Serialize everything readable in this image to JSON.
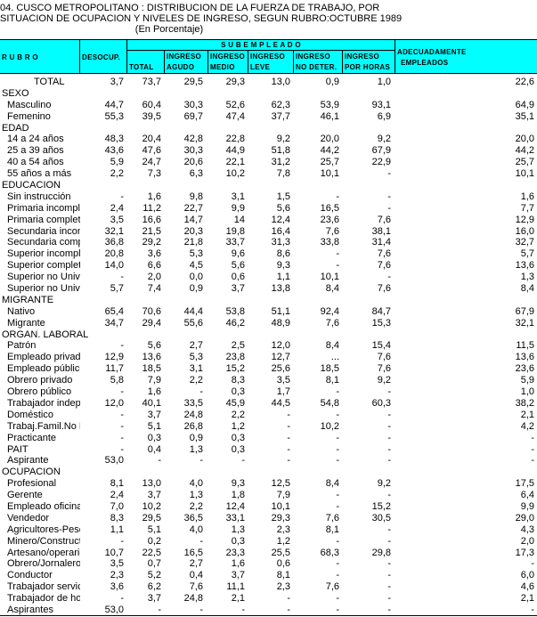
{
  "title": {
    "line1": "04.  CUSCO  METROPOLITANO  :  DISTRIBUCION DE LA FUERZA DE TRABAJO,  POR",
    "line2": "SITUACION DE OCUPACION Y NIVELES DE INGRESO, SEGUN RUBRO:OCTUBRE 1989",
    "line3": "(En Porcentaje)"
  },
  "header": {
    "rubro": "R U B R O",
    "desocup": "DESOCUP.",
    "sub_empleado": "S U B   E M P L E A D O",
    "total": "TOTAL",
    "agudo": [
      "INGRESO",
      "AGUDO"
    ],
    "medio": [
      "INGRESO",
      "MEDIO"
    ],
    "leve": [
      "INGRESO",
      "LEVE"
    ],
    "nodeter": [
      "INGRESO",
      "NO DETER."
    ],
    "porhoras": [
      "INGRESO",
      "POR HORAS"
    ],
    "adecuad": [
      "ADECUADAMENTE",
      "EMPLEADOS"
    ],
    "bg_color": "#00ffff"
  },
  "rows": [
    {
      "type": "total",
      "label": "TOTAL",
      "v": [
        "3,7",
        "73,7",
        "29,5",
        "29,3",
        "13,0",
        "0,9",
        "1,0",
        "22,6"
      ]
    },
    {
      "type": "section",
      "label": "SEXO"
    },
    {
      "label": "Masculino",
      "v": [
        "44,7",
        "60,4",
        "30,3",
        "52,6",
        "62,3",
        "53,9",
        "93,1",
        "64,9"
      ]
    },
    {
      "label": "Femenino",
      "v": [
        "55,3",
        "39,5",
        "69,7",
        "47,4",
        "37,7",
        "46,1",
        "6,9",
        "35,1"
      ]
    },
    {
      "type": "section",
      "label": "EDAD"
    },
    {
      "label": "14 a 24 años",
      "v": [
        "48,3",
        "20,4",
        "42,8",
        "22,8",
        "9,2",
        "20,0",
        "9,2",
        "20,0"
      ]
    },
    {
      "label": "25 a 39 años",
      "v": [
        "43,6",
        "47,6",
        "30,3",
        "44,9",
        "51,8",
        "44,2",
        "67,9",
        "44,2"
      ]
    },
    {
      "label": "40 a 54 años",
      "v": [
        "5,9",
        "24,7",
        "20,6",
        "22,1",
        "31,2",
        "25,7",
        "22,9",
        "25,7"
      ]
    },
    {
      "label": "55 años a más",
      "v": [
        "2,2",
        "7,3",
        "6,3",
        "10,2",
        "7,8",
        "10,1",
        "-",
        "10,1"
      ]
    },
    {
      "type": "section",
      "label": "EDUCACION"
    },
    {
      "label": "Sin instrucción",
      "v": [
        "-",
        "1,6",
        "9,8",
        "3,1",
        "1,5",
        "-",
        "-",
        "1,6"
      ]
    },
    {
      "label": "Primaria incompleta",
      "v": [
        "2,4",
        "11,2",
        "22,7",
        "9,9",
        "5,6",
        "16,5",
        "-",
        "7,7"
      ]
    },
    {
      "label": "Primaria completa",
      "v": [
        "3,5",
        "16,6",
        "14,7",
        "14",
        "12,4",
        "23,6",
        "7,6",
        "12,9"
      ]
    },
    {
      "label": "Secundaria incompl",
      "v": [
        "32,1",
        "21,5",
        "20,3",
        "19,8",
        "16,4",
        "7,6",
        "38,1",
        "16,0"
      ]
    },
    {
      "label": "Secundaria completa",
      "v": [
        "36,8",
        "29,2",
        "21,8",
        "33,7",
        "31,3",
        "33,8",
        "31,4",
        "32,7"
      ]
    },
    {
      "label": "Superior incompleta",
      "v": [
        "20,8",
        "3,6",
        "5,3",
        "9,6",
        "8,6",
        "-",
        "7,6",
        "5,7"
      ]
    },
    {
      "label": "Superior completa",
      "v": [
        "14,0",
        "6,6",
        "4,5",
        "5,6",
        "9,3",
        "-",
        "7,6",
        "13,6"
      ]
    },
    {
      "label": "Superior no Univ. in",
      "v": [
        "-",
        "2,0",
        "0,0",
        "0,6",
        "1,1",
        "10,1",
        "-",
        "1,3"
      ]
    },
    {
      "label": "Superior no Univ. cc",
      "v": [
        "5,7",
        "7,4",
        "0,9",
        "3,7",
        "13,8",
        "8,4",
        "7,6",
        "8,4"
      ]
    },
    {
      "type": "section",
      "label": "MIGRANTE"
    },
    {
      "label": "Nativo",
      "v": [
        "65,4",
        "70,6",
        "44,4",
        "53,8",
        "51,1",
        "92,4",
        "84,7",
        "67,9"
      ]
    },
    {
      "label": "Migrante",
      "v": [
        "34,7",
        "29,4",
        "55,6",
        "46,2",
        "48,9",
        "7,6",
        "15,3",
        "32,1"
      ]
    },
    {
      "type": "section",
      "label": "ORGAN.  LABORAL"
    },
    {
      "label": "Patrón",
      "v": [
        "-",
        "5,6",
        "2,7",
        "2,5",
        "12,0",
        "8,4",
        "15,4",
        "11,5"
      ]
    },
    {
      "label": "Empleado privado",
      "v": [
        "12,9",
        "13,6",
        "5,3",
        "23,8",
        "12,7",
        "...",
        "7,6",
        "13,6"
      ]
    },
    {
      "label": "Empleado público",
      "v": [
        "11,7",
        "18,5",
        "3,1",
        "15,2",
        "25,6",
        "18,5",
        "7,6",
        "23,6"
      ]
    },
    {
      "label": "Obrero privado",
      "v": [
        "5,8",
        "7,9",
        "2,2",
        "8,3",
        "3,5",
        "8,1",
        "9,2",
        "5,9"
      ]
    },
    {
      "label": "Obrero público",
      "v": [
        "-",
        "1,6",
        "-",
        "0,3",
        "1,7",
        "-",
        "-",
        "1,0"
      ]
    },
    {
      "label": "Trabajador indepen",
      "v": [
        "12,0",
        "40,1",
        "33,5",
        "45,9",
        "44,5",
        "54,8",
        "60,3",
        "38,2"
      ]
    },
    {
      "label": "Doméstico",
      "v": [
        "-",
        "3,7",
        "24,8",
        "2,2",
        "-",
        "-",
        "-",
        "2,1"
      ]
    },
    {
      "label": "Trabaj.Famil.No Re",
      "v": [
        "-",
        "5,1",
        "26,8",
        "1,2",
        "-",
        "10,2",
        "-",
        "4,2"
      ]
    },
    {
      "label": "Practicante",
      "v": [
        "-",
        "0,3",
        "0,9",
        "0,3",
        "-",
        "-",
        "-",
        "-"
      ]
    },
    {
      "label": "PAIT",
      "v": [
        "-",
        "0,4",
        "1,3",
        "0,3",
        "-",
        "-",
        "-",
        "-"
      ]
    },
    {
      "label": "Aspirante",
      "v": [
        "53,0",
        "-",
        "-",
        "-",
        "-",
        "-",
        "-",
        "-"
      ]
    },
    {
      "type": "section",
      "label": "OCUPACION"
    },
    {
      "label": "Profesional",
      "v": [
        "8,1",
        "13,0",
        "4,0",
        "9,3",
        "12,5",
        "8,4",
        "9,2",
        "17,5"
      ]
    },
    {
      "label": "Gerente",
      "v": [
        "2,4",
        "3,7",
        "1,3",
        "1,8",
        "7,9",
        "-",
        "-",
        "6,4"
      ]
    },
    {
      "label": "Empleado oficina",
      "v": [
        "7,0",
        "10,2",
        "2,2",
        "12,4",
        "10,1",
        "-",
        "15,2",
        "9,9"
      ]
    },
    {
      "label": "Vendedor",
      "v": [
        "8,3",
        "29,5",
        "36,5",
        "33,1",
        "29,3",
        "7,6",
        "30,5",
        "29,0"
      ]
    },
    {
      "label": "Agricultores-Pescad",
      "v": [
        "1,1",
        "5,1",
        "4,0",
        "1,3",
        "2,3",
        "8,1",
        "-",
        "4,3"
      ]
    },
    {
      "label": "Minero/Constructor",
      "v": [
        "-",
        "0,2",
        "-",
        "0,3",
        "1,2",
        "-",
        "-",
        "2,0"
      ]
    },
    {
      "label": "Artesano/operario",
      "v": [
        "10,7",
        "22,5",
        "16,5",
        "23,3",
        "25,5",
        "68,3",
        "29,8",
        "17,3"
      ]
    },
    {
      "label": "Obrero/Jornalero",
      "v": [
        "3,5",
        "0,7",
        "2,7",
        "1,6",
        "0,6",
        "-",
        "-",
        "-"
      ]
    },
    {
      "label": "Conductor",
      "v": [
        "2,3",
        "5,2",
        "0,4",
        "3,7",
        "8,1",
        "-",
        "-",
        "6,0"
      ]
    },
    {
      "label": "Trabajador servicio",
      "v": [
        "3,6",
        "6,2",
        "7,6",
        "11,1",
        "2,3",
        "7,6",
        "-",
        "4,6"
      ]
    },
    {
      "label": "Trabajador de hogar",
      "v": [
        "-",
        "3,7",
        "24,8",
        "2,1",
        "-",
        "-",
        "-",
        "2,1"
      ]
    },
    {
      "label": "Aspirantes",
      "v": [
        "53,0",
        "-",
        "-",
        "-",
        "-",
        "-",
        "-",
        "-"
      ]
    }
  ]
}
